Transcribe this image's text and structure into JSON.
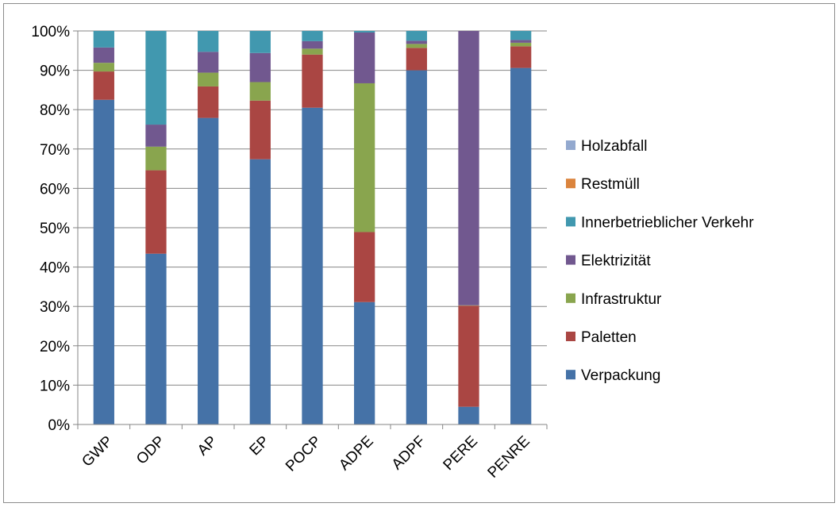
{
  "chart_data": {
    "type": "bar",
    "stacked": true,
    "title": "",
    "xlabel": "",
    "ylabel": "",
    "ylim": [
      0,
      100
    ],
    "y_tick_labels": [
      "0%",
      "10%",
      "20%",
      "30%",
      "40%",
      "50%",
      "60%",
      "70%",
      "80%",
      "90%",
      "100%"
    ],
    "grid": true,
    "legend_position": "right",
    "categories": [
      "GWP",
      "ODP",
      "AP",
      "EP",
      "POCP",
      "ADPE",
      "ADPF",
      "PERE",
      "PENRE"
    ],
    "series": [
      {
        "name": "Verpackung",
        "color": "#4572A7",
        "values": [
          82.5,
          43.4,
          77.9,
          67.4,
          80.5,
          31.1,
          90.0,
          4.5,
          90.6
        ]
      },
      {
        "name": "Paletten",
        "color": "#AA4643",
        "values": [
          7.2,
          21.2,
          8.0,
          14.9,
          13.5,
          17.8,
          5.7,
          25.7,
          5.5
        ]
      },
      {
        "name": "Infrastruktur",
        "color": "#89A54E",
        "values": [
          2.2,
          6.0,
          3.5,
          4.7,
          1.5,
          37.8,
          1.0,
          0.1,
          0.9
        ]
      },
      {
        "name": "Elektrizität",
        "color": "#71588F",
        "values": [
          3.9,
          5.6,
          5.3,
          7.4,
          1.9,
          12.9,
          0.8,
          69.7,
          0.7
        ]
      },
      {
        "name": "Innerbetrieblicher Verkehr",
        "color": "#4198AF",
        "values": [
          4.2,
          23.8,
          5.3,
          5.6,
          2.6,
          0.4,
          2.5,
          0.0,
          2.3
        ]
      },
      {
        "name": "Restmüll",
        "color": "#DB843D",
        "values": [
          0,
          0,
          0,
          0,
          0,
          0,
          0,
          0,
          0
        ]
      },
      {
        "name": "Holzabfall",
        "color": "#93A9CF",
        "values": [
          0,
          0,
          0,
          0,
          0,
          0,
          0,
          0,
          0
        ]
      }
    ],
    "legend_order": [
      "Holzabfall",
      "Restmüll",
      "Innerbetrieblicher Verkehr",
      "Elektrizität",
      "Infrastruktur",
      "Paletten",
      "Verpackung"
    ]
  }
}
